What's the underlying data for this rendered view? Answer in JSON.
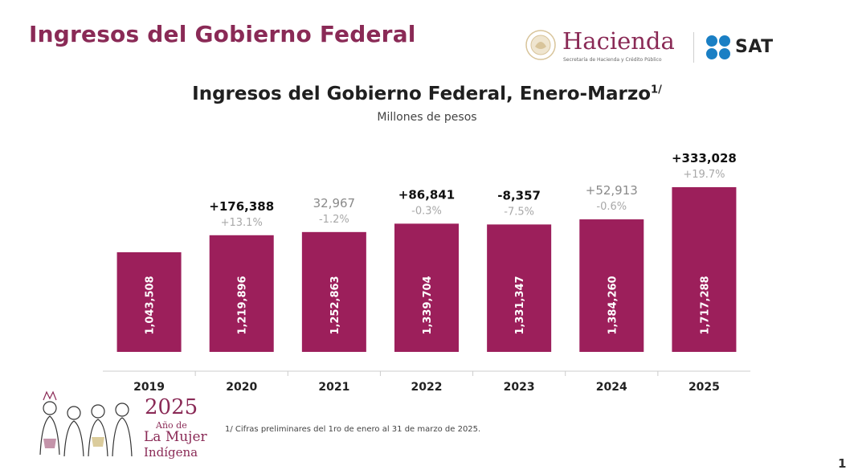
{
  "header": {
    "page_title": "Ingresos del Gobierno Federal",
    "hacienda_name": "Hacienda",
    "hacienda_subtitle": "Secretaría de Hacienda y Crédito Público",
    "sat_name": "SAT"
  },
  "chart_data": {
    "type": "bar",
    "title": "Ingresos del Gobierno Federal, Enero-Marzo",
    "title_superscript": "1/",
    "subtitle": "Millones de pesos",
    "categories": [
      "2019",
      "2020",
      "2021",
      "2022",
      "2023",
      "2024",
      "2025"
    ],
    "values": [
      1043508,
      1219896,
      1252863,
      1339704,
      1331347,
      1384260,
      1717288
    ],
    "value_labels": [
      "1,043,508",
      "1,219,896",
      "1,252,863",
      "1,339,704",
      "1,331,347",
      "1,384,260",
      "1,717,288"
    ],
    "change_labels": [
      "",
      "+176,388",
      "32,967",
      "+86,841",
      "-8,357",
      "+52,913",
      "+333,028"
    ],
    "change_label_emphasis": [
      false,
      true,
      false,
      true,
      true,
      false,
      true
    ],
    "pct_labels": [
      "",
      "+13.1%",
      "-1.2%",
      "-0.3%",
      "-7.5%",
      "-0.6%",
      "+19.7%"
    ],
    "xlabel": "",
    "ylabel": "",
    "grid": false,
    "legend": "none"
  },
  "colors": {
    "bar": "#9c1f5b",
    "brand": "#8a2a56",
    "sat_blue": "#1a7fc4",
    "axis": "#cccccc",
    "pct_text": "#a8a8a8",
    "change_emphasis": "#111111",
    "change_muted": "#8a8a8a"
  },
  "footer": {
    "footnote": "1/ Cifras preliminares del 1ro de enero al 31 de marzo de 2025.",
    "page_number": "1",
    "year_logo_year": "2025",
    "year_logo_line1": "Año de",
    "year_logo_line2": "La Mujer",
    "year_logo_line3": "Indígena"
  }
}
